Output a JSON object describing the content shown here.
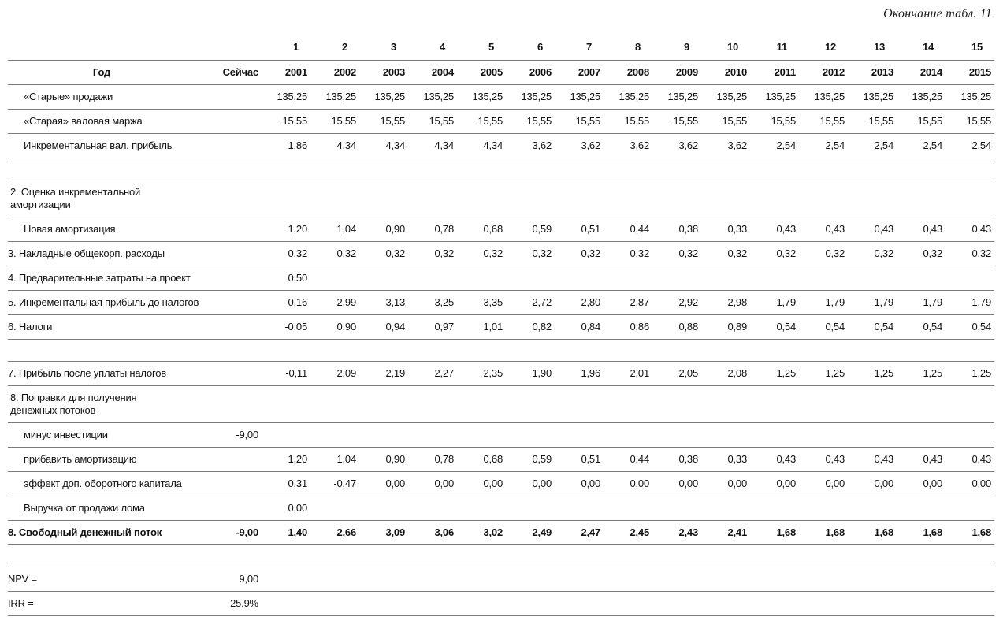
{
  "page": {
    "caption": "Окончание табл. 11"
  },
  "colors": {
    "line": "#7a7a7a",
    "text": "#121212",
    "background": "#ffffff"
  },
  "table": {
    "period_numbers": [
      "1",
      "2",
      "3",
      "4",
      "5",
      "6",
      "7",
      "8",
      "9",
      "10",
      "11",
      "12",
      "13",
      "14",
      "15"
    ],
    "header": {
      "year_label": "Год",
      "now_label": "Сейчас",
      "years": [
        "2001",
        "2002",
        "2003",
        "2004",
        "2005",
        "2006",
        "2007",
        "2008",
        "2009",
        "2010",
        "2011",
        "2012",
        "2013",
        "2014",
        "2015"
      ]
    },
    "rows": [
      {
        "type": "data",
        "label": "«Старые» продажи",
        "indent": true,
        "now": "",
        "values": [
          "135,25",
          "135,25",
          "135,25",
          "135,25",
          "135,25",
          "135,25",
          "135,25",
          "135,25",
          "135,25",
          "135,25",
          "135,25",
          "135,25",
          "135,25",
          "135,25",
          "135,25"
        ]
      },
      {
        "type": "data",
        "label": "«Старая» валовая маржа",
        "indent": true,
        "now": "",
        "values": [
          "15,55",
          "15,55",
          "15,55",
          "15,55",
          "15,55",
          "15,55",
          "15,55",
          "15,55",
          "15,55",
          "15,55",
          "15,55",
          "15,55",
          "15,55",
          "15,55",
          "15,55"
        ]
      },
      {
        "type": "data",
        "label": "Инкрементальная вал. прибыль",
        "indent": true,
        "now": "",
        "values": [
          "1,86",
          "4,34",
          "4,34",
          "4,34",
          "4,34",
          "3,62",
          "3,62",
          "3,62",
          "3,62",
          "3,62",
          "2,54",
          "2,54",
          "2,54",
          "2,54",
          "2,54"
        ]
      },
      {
        "type": "gap"
      },
      {
        "type": "section",
        "label": "2. Оценка инкрементальной\nамортизации"
      },
      {
        "type": "data",
        "label": "Новая амортизация",
        "indent": true,
        "now": "",
        "values": [
          "1,20",
          "1,04",
          "0,90",
          "0,78",
          "0,68",
          "0,59",
          "0,51",
          "0,44",
          "0,38",
          "0,33",
          "0,43",
          "0,43",
          "0,43",
          "0,43",
          "0,43"
        ]
      },
      {
        "type": "data",
        "label": "3. Накладные общекорп. расходы",
        "now": "",
        "values": [
          "0,32",
          "0,32",
          "0,32",
          "0,32",
          "0,32",
          "0,32",
          "0,32",
          "0,32",
          "0,32",
          "0,32",
          "0,32",
          "0,32",
          "0,32",
          "0,32",
          "0,32"
        ]
      },
      {
        "type": "data",
        "label": "4. Предварительные затраты\nна проект",
        "now": "",
        "values": [
          "0,50",
          "",
          "",
          "",
          "",
          "",
          "",
          "",
          "",
          "",
          "",
          "",
          "",
          "",
          ""
        ]
      },
      {
        "type": "data",
        "label": "5. Инкрементальная прибыль\nдо налогов",
        "now": "",
        "values": [
          "-0,16",
          "2,99",
          "3,13",
          "3,25",
          "3,35",
          "2,72",
          "2,80",
          "2,87",
          "2,92",
          "2,98",
          "1,79",
          "1,79",
          "1,79",
          "1,79",
          "1,79"
        ]
      },
      {
        "type": "data",
        "label": "6. Налоги",
        "now": "",
        "values": [
          "-0,05",
          "0,90",
          "0,94",
          "0,97",
          "1,01",
          "0,82",
          "0,84",
          "0,86",
          "0,88",
          "0,89",
          "0,54",
          "0,54",
          "0,54",
          "0,54",
          "0,54"
        ]
      },
      {
        "type": "gap"
      },
      {
        "type": "data",
        "label": "7. Прибыль после уплаты налогов",
        "now": "",
        "values": [
          "-0,11",
          "2,09",
          "2,19",
          "2,27",
          "2,35",
          "1,90",
          "1,96",
          "2,01",
          "2,05",
          "2,08",
          "1,25",
          "1,25",
          "1,25",
          "1,25",
          "1,25"
        ]
      },
      {
        "type": "section",
        "label": "8. Поправки для получения\nденежных потоков"
      },
      {
        "type": "data",
        "label": "минус инвестиции",
        "indent": true,
        "now": "-9,00",
        "values": [
          "",
          "",
          "",
          "",
          "",
          "",
          "",
          "",
          "",
          "",
          "",
          "",
          "",
          "",
          ""
        ]
      },
      {
        "type": "data",
        "label": "прибавить амортизацию",
        "indent": true,
        "now": "",
        "values": [
          "1,20",
          "1,04",
          "0,90",
          "0,78",
          "0,68",
          "0,59",
          "0,51",
          "0,44",
          "0,38",
          "0,33",
          "0,43",
          "0,43",
          "0,43",
          "0,43",
          "0,43"
        ]
      },
      {
        "type": "data",
        "label": "эффект доп. оборотного капитала",
        "indent": true,
        "now": "",
        "values": [
          "0,31",
          "-0,47",
          "0,00",
          "0,00",
          "0,00",
          "0,00",
          "0,00",
          "0,00",
          "0,00",
          "0,00",
          "0,00",
          "0,00",
          "0,00",
          "0,00",
          "0,00"
        ]
      },
      {
        "type": "data",
        "label": "Выручка от продажи лома",
        "indent": true,
        "now": "",
        "values": [
          "0,00",
          "",
          "",
          "",
          "",
          "",
          "",
          "",
          "",
          "",
          "",
          "",
          "",
          "",
          ""
        ]
      },
      {
        "type": "data",
        "label": "8. Свободный денежный поток",
        "bold": true,
        "now": "-9,00",
        "values": [
          "1,40",
          "2,66",
          "3,09",
          "3,06",
          "3,02",
          "2,49",
          "2,47",
          "2,45",
          "2,43",
          "2,41",
          "1,68",
          "1,68",
          "1,68",
          "1,68",
          "1,68"
        ]
      },
      {
        "type": "gap"
      },
      {
        "type": "data",
        "label": "NPV =",
        "now": "9,00",
        "now_bold": true,
        "values": [
          "",
          "",
          "",
          "",
          "",
          "",
          "",
          "",
          "",
          "",
          "",
          "",
          "",
          "",
          ""
        ]
      },
      {
        "type": "data",
        "label": "IRR =",
        "now": "25,9%",
        "now_bold": true,
        "values": [
          "",
          "",
          "",
          "",
          "",
          "",
          "",
          "",
          "",
          "",
          "",
          "",
          "",
          "",
          ""
        ]
      }
    ]
  }
}
